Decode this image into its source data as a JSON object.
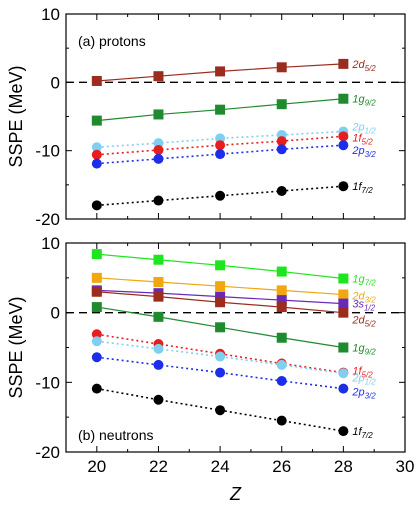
{
  "chart_data": [
    {
      "type": "line",
      "panel": "top",
      "title": "(a) protons",
      "ylabel": "SSPE (MeV)",
      "ylim": [
        -20,
        10
      ],
      "xlim": [
        19,
        30
      ],
      "yticks": [
        "10",
        "0",
        "-10",
        "-20"
      ],
      "x": [
        20,
        22,
        24,
        26,
        28
      ],
      "series": [
        {
          "name": "2d",
          "sub": "5/2",
          "color": "#9b2d1f",
          "marker": "square",
          "style": "solid",
          "values": [
            0.2,
            0.9,
            1.6,
            2.2,
            2.7
          ]
        },
        {
          "name": "1g",
          "sub": "9/2",
          "color": "#1f8a2e",
          "marker": "square",
          "style": "solid",
          "values": [
            -5.6,
            -4.7,
            -4.0,
            -3.2,
            -2.4
          ]
        },
        {
          "name": "2p",
          "sub": "1/2",
          "color": "#80cfee",
          "marker": "circle",
          "style": "dotted",
          "values": [
            -9.5,
            -8.9,
            -8.2,
            -7.7,
            -7.2
          ]
        },
        {
          "name": "1f",
          "sub": "5/2",
          "color": "#e81d1d",
          "marker": "circle",
          "style": "dotted",
          "values": [
            -10.6,
            -9.9,
            -9.2,
            -8.6,
            -7.9
          ]
        },
        {
          "name": "2p",
          "sub": "3/2",
          "color": "#1d2ee8",
          "marker": "circle",
          "style": "dotted",
          "values": [
            -11.9,
            -11.2,
            -10.5,
            -9.8,
            -9.2
          ]
        },
        {
          "name": "1f",
          "sub": "7/2",
          "color": "#000000",
          "marker": "circle",
          "style": "dotted",
          "values": [
            -18.0,
            -17.3,
            -16.6,
            -15.9,
            -15.2
          ]
        }
      ]
    },
    {
      "type": "line",
      "panel": "bottom",
      "title": "(b) neutrons",
      "ylabel": "SSPE (MeV)",
      "xlabel": "Z",
      "ylim": [
        -20,
        10
      ],
      "xlim": [
        19,
        30
      ],
      "yticks": [
        "10",
        "0",
        "-10",
        "-20"
      ],
      "xticks": [
        "20",
        "22",
        "24",
        "26",
        "28",
        "30"
      ],
      "x": [
        20,
        22,
        24,
        26,
        28
      ],
      "series": [
        {
          "name": "1g",
          "sub": "7/2",
          "color": "#1ee61e",
          "marker": "square",
          "style": "solid",
          "values": [
            8.4,
            7.6,
            6.8,
            5.9,
            4.9
          ]
        },
        {
          "name": "2d",
          "sub": "3/2",
          "color": "#f2a60f",
          "marker": "square",
          "style": "solid",
          "values": [
            5.0,
            4.4,
            3.8,
            3.2,
            2.6
          ]
        },
        {
          "name": "3s",
          "sub": "1/2",
          "color": "#6a2ab8",
          "marker": "square",
          "style": "solid",
          "values": [
            3.2,
            2.8,
            2.3,
            1.8,
            1.3
          ]
        },
        {
          "name": "2d",
          "sub": "5/2",
          "color": "#9b2d1f",
          "marker": "square",
          "style": "solid",
          "values": [
            3.0,
            2.3,
            1.5,
            0.8,
            0.0
          ]
        },
        {
          "name": "1g",
          "sub": "9/2",
          "color": "#1f8a2e",
          "marker": "square",
          "style": "solid",
          "values": [
            0.8,
            -0.6,
            -2.1,
            -3.6,
            -5.0
          ]
        },
        {
          "name": "1f",
          "sub": "5/2",
          "color": "#e81d1d",
          "marker": "circle",
          "style": "dotted",
          "values": [
            -3.1,
            -4.5,
            -5.9,
            -7.3,
            -8.6
          ]
        },
        {
          "name": "2p",
          "sub": "1/2",
          "color": "#80cfee",
          "marker": "circle",
          "style": "dotted",
          "values": [
            -4.1,
            -5.2,
            -6.3,
            -7.5,
            -8.7
          ]
        },
        {
          "name": "2p",
          "sub": "3/2",
          "color": "#1d2ee8",
          "marker": "circle",
          "style": "dotted",
          "values": [
            -6.4,
            -7.5,
            -8.6,
            -9.8,
            -10.9
          ]
        },
        {
          "name": "1f",
          "sub": "7/2",
          "color": "#000000",
          "marker": "circle",
          "style": "dotted",
          "values": [
            -10.9,
            -12.5,
            -14.0,
            -15.5,
            -17.0
          ]
        }
      ]
    }
  ]
}
